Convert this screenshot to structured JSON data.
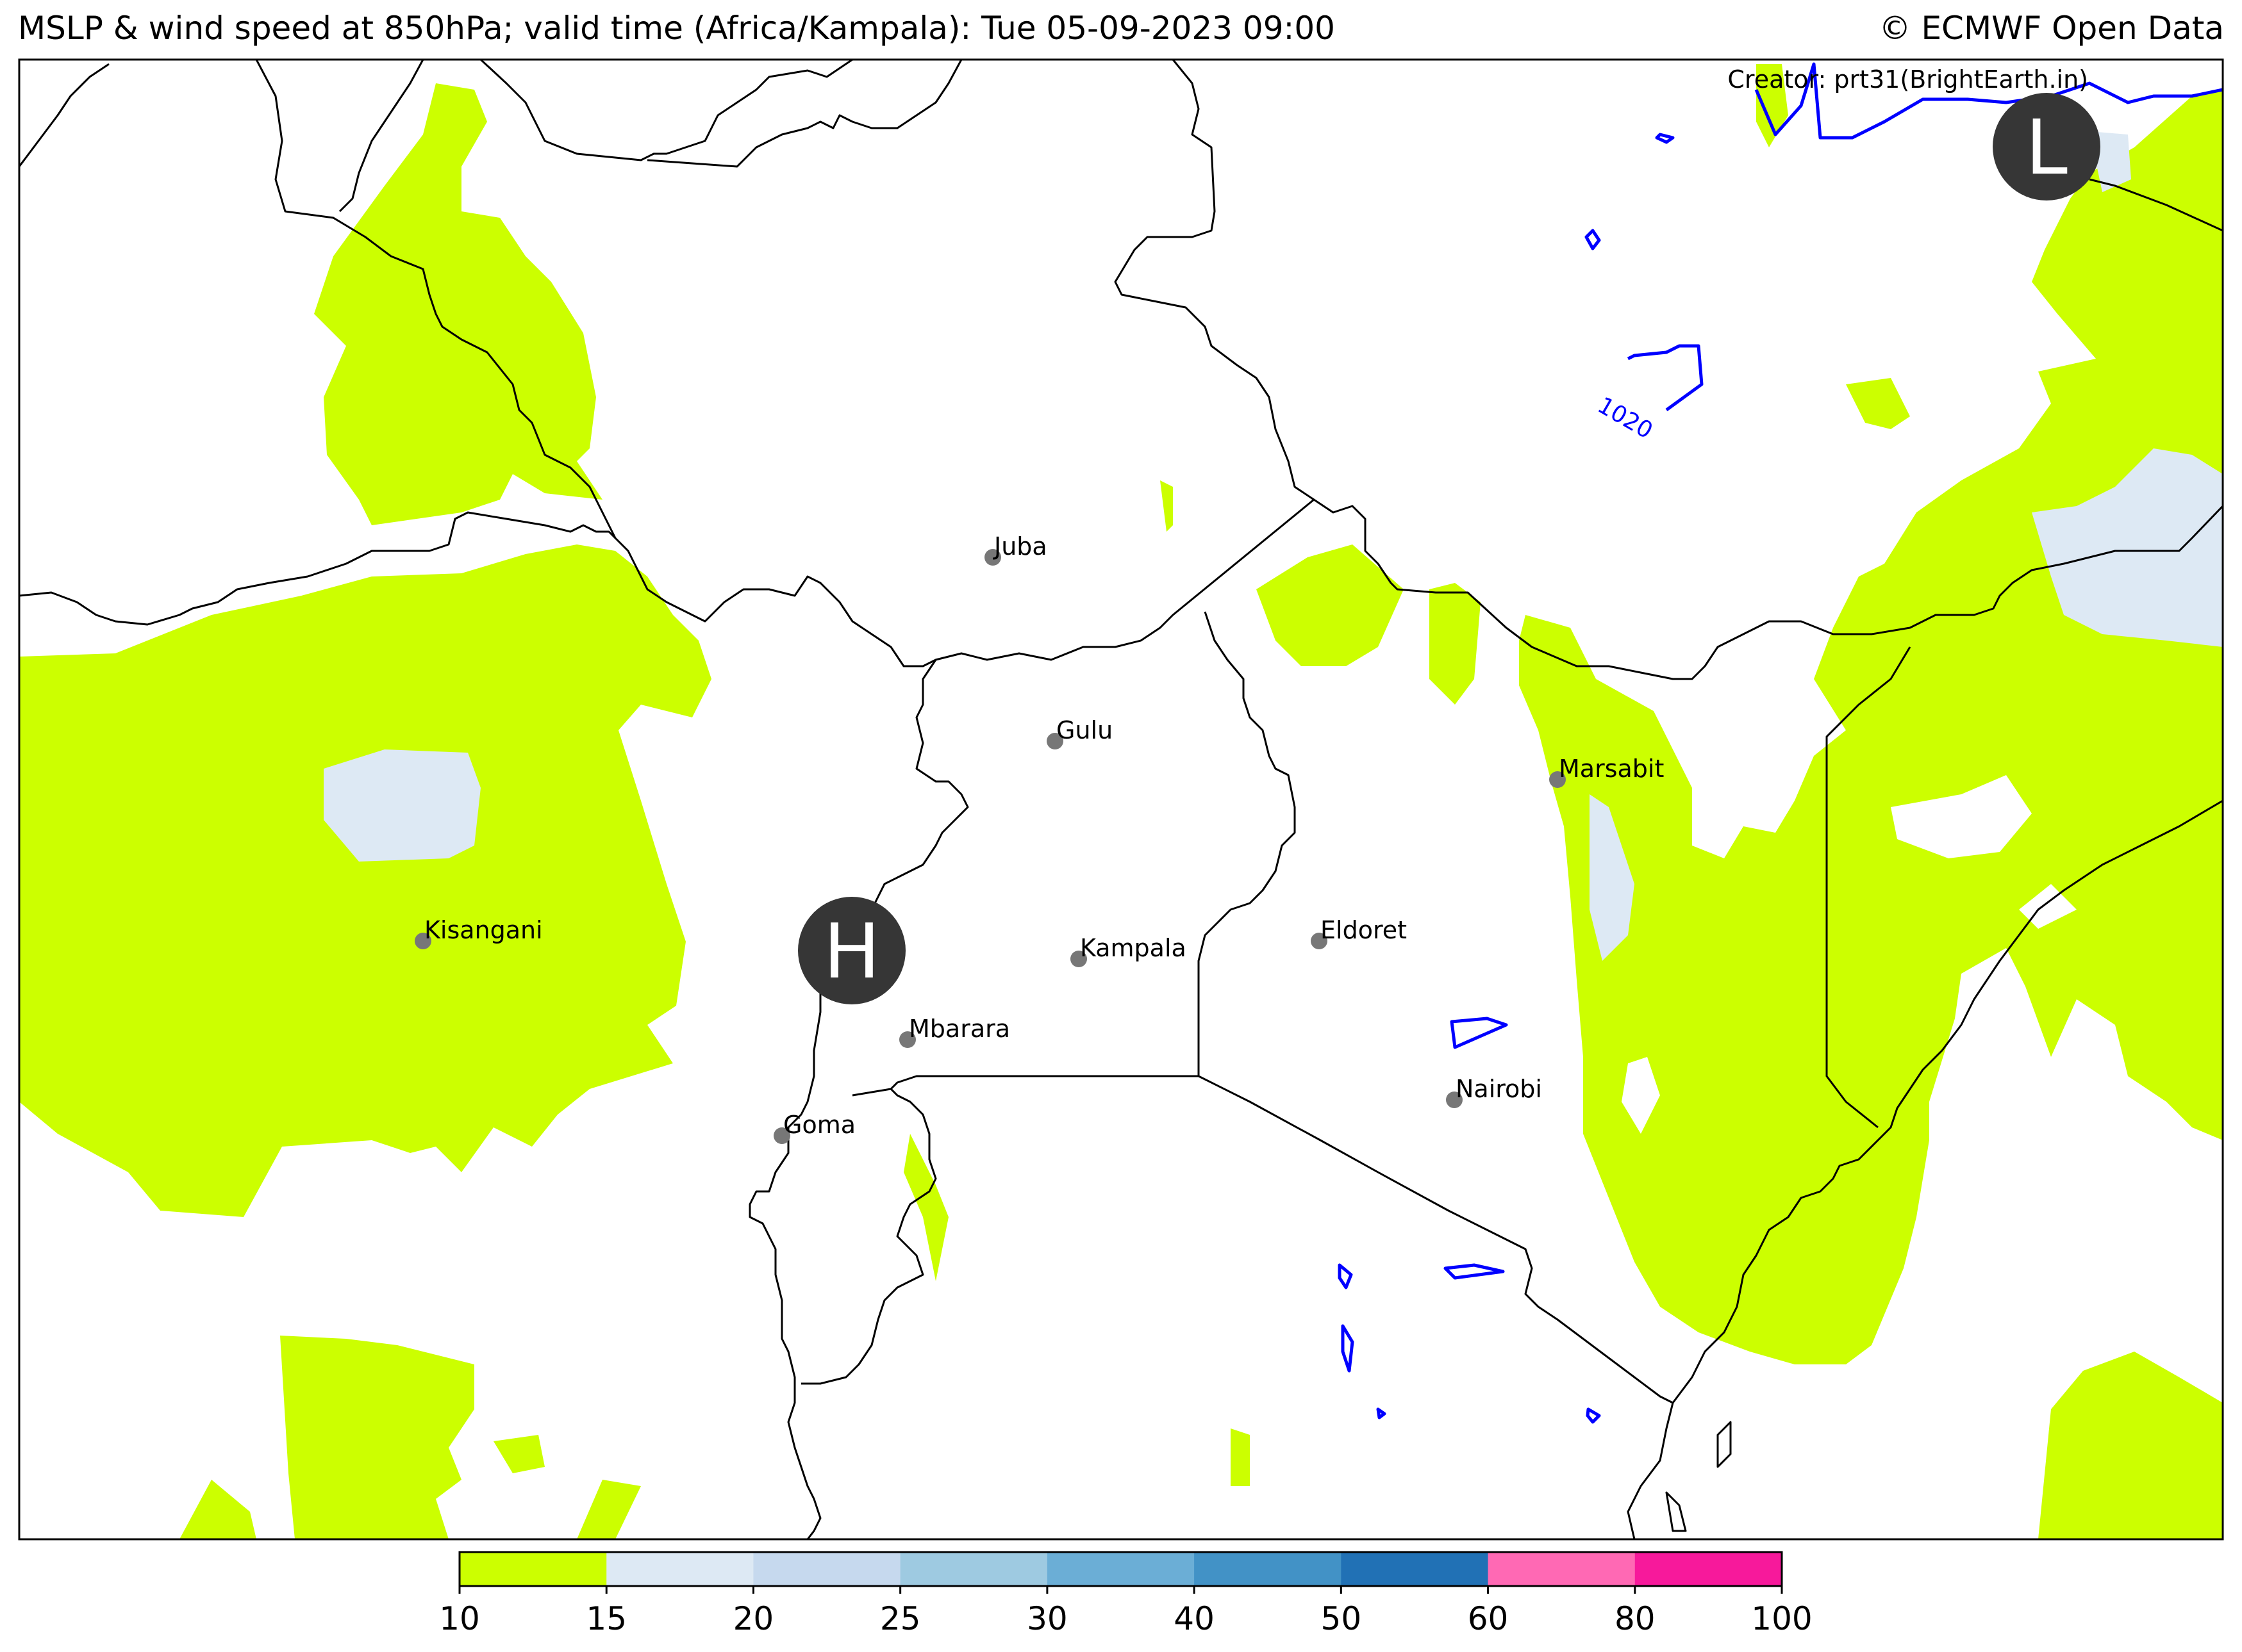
{
  "header": {
    "title": "MSLP & wind speed at 850hPa; valid time (Africa/Kampala): Tue 05-09-2023 09:00",
    "copyright": "© ECMWF Open Data"
  },
  "map": {
    "creator": "Creator: prt31(BrightEarth.in)",
    "pressure_systems": [
      {
        "letter": "H",
        "kind": "high"
      },
      {
        "letter": "L",
        "kind": "low"
      }
    ],
    "isobar_label": "1020",
    "cities": [
      {
        "name": "Juba"
      },
      {
        "name": "Gulu"
      },
      {
        "name": "Marsabit"
      },
      {
        "name": "Kisangani"
      },
      {
        "name": "Kampala"
      },
      {
        "name": "Eldoret"
      },
      {
        "name": "Mbarara"
      },
      {
        "name": "Nairobi"
      },
      {
        "name": "Goma"
      }
    ],
    "colors": {
      "wind_10_15": "#ccff00",
      "wind_15_20": "#dde9f4",
      "isobar": "#0000ff",
      "border": "#000000",
      "city_marker": "#777777",
      "pressure_marker": "#363636"
    }
  },
  "colorbar": {
    "ticks": [
      "10",
      "15",
      "20",
      "25",
      "30",
      "40",
      "50",
      "60",
      "80",
      "100"
    ],
    "colors": [
      "#ccff00",
      "#dde9f4",
      "#c6d9ee",
      "#9ecae1",
      "#6baed6",
      "#4292c6",
      "#2171b5",
      "#ff69b4",
      "#f7199b"
    ]
  }
}
